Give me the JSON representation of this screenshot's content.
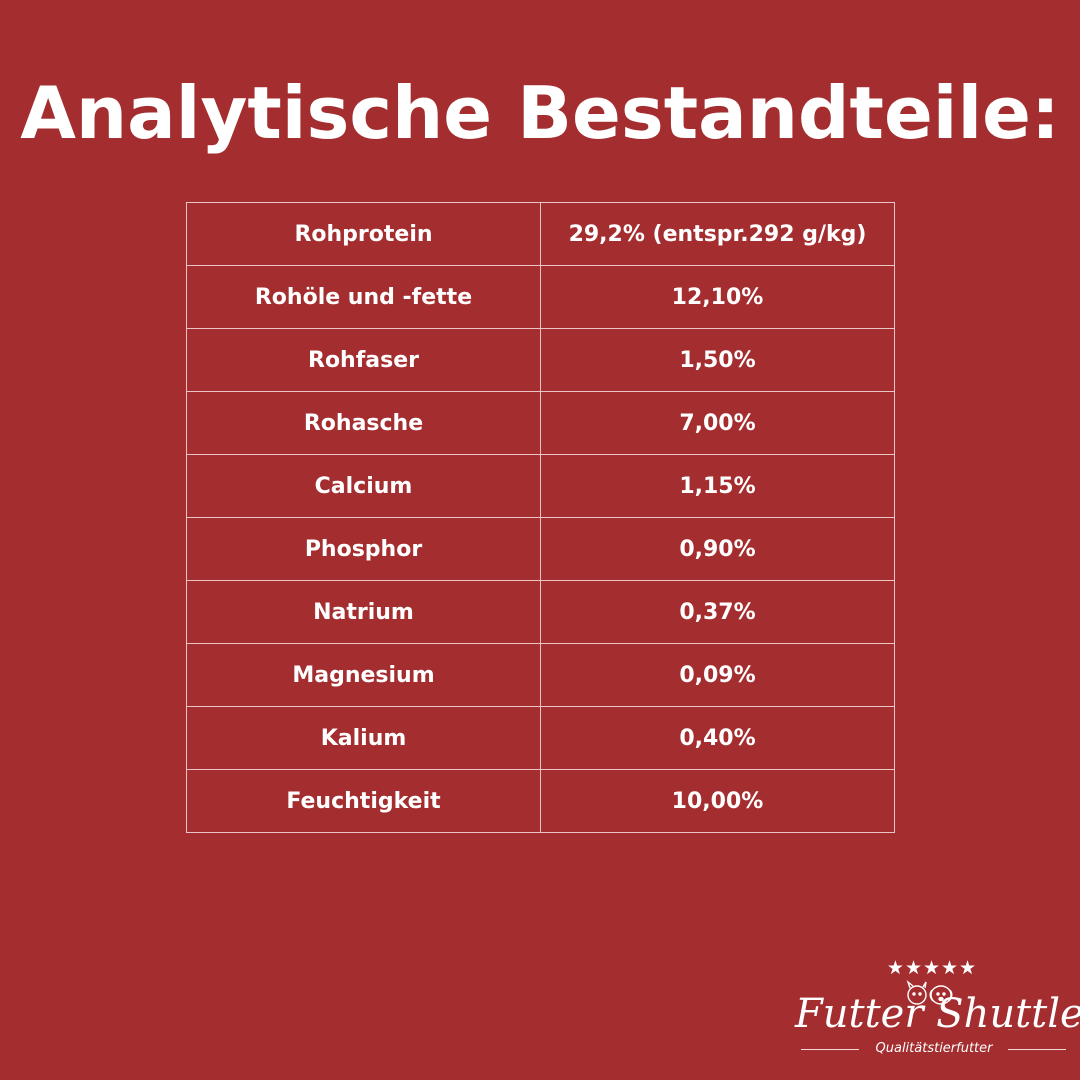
{
  "title": "Analytische Bestandteile:",
  "table": {
    "rows": [
      {
        "name": "Rohprotein",
        "value": "29,2% (entspr.292 g/kg)"
      },
      {
        "name": "Rohöle und -fette",
        "value": "12,10%"
      },
      {
        "name": "Rohfaser",
        "value": "1,50%"
      },
      {
        "name": "Rohasche",
        "value": "7,00%"
      },
      {
        "name": "Calcium",
        "value": "1,15%"
      },
      {
        "name": "Phosphor",
        "value": "0,90%"
      },
      {
        "name": "Natrium",
        "value": "0,37%"
      },
      {
        "name": "Magnesium",
        "value": "0,09%"
      },
      {
        "name": "Kalium",
        "value": "0,40%"
      },
      {
        "name": "Feuchtigkeit",
        "value": "10,00%"
      }
    ]
  },
  "logo": {
    "stars": "★★★★★",
    "brand": "Futter Shuttle",
    "tagline": "Qualitätstierfutter"
  },
  "colors": {
    "background": "#a42d2f",
    "text": "#ffffff",
    "table_border": "#e8c4c5"
  }
}
